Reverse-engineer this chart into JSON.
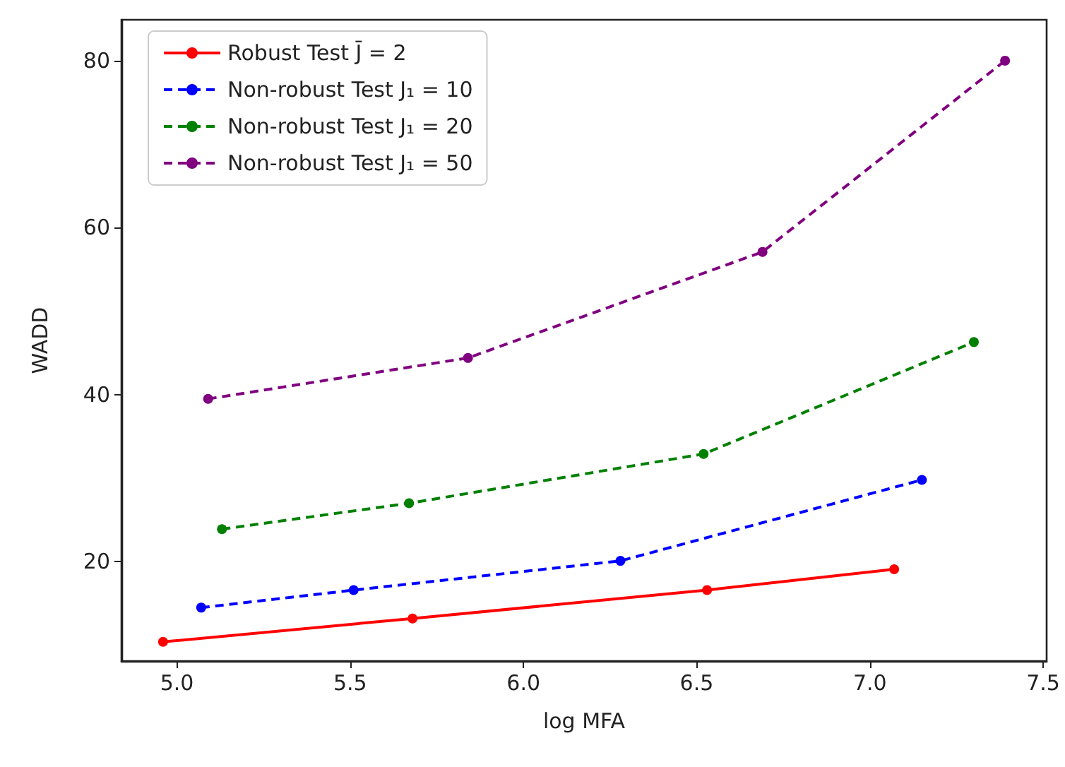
{
  "chart_data": {
    "type": "line",
    "xlabel": "log MFA",
    "ylabel": "WADD",
    "xlim": [
      4.84,
      7.51
    ],
    "xticks": [
      {
        "value": 5,
        "label": "5.0"
      },
      5.5,
      {
        "value": 6,
        "label": "6.0"
      },
      6.5,
      {
        "value": 7,
        "label": "7.0"
      },
      7.5
    ],
    "ylim": [
      8.1,
      84.9
    ],
    "yticks": [
      20,
      40,
      60,
      80
    ],
    "grid": false,
    "legend": "top left",
    "marker": "circle",
    "series": [
      {
        "name": "Robust Test J̄ = 2",
        "color": "#ff0000",
        "line_style": "solid",
        "x": [
          4.96,
          5.68,
          6.53,
          7.07
        ],
        "values": [
          10.4,
          13.2,
          16.6,
          19.1
        ]
      },
      {
        "name": "Non-robust Test J₁ = 10",
        "color": "#0000ff",
        "line_style": "dashed",
        "x": [
          5.07,
          5.51,
          6.28,
          7.15
        ],
        "values": [
          14.5,
          16.6,
          20.1,
          29.8
        ]
      },
      {
        "name": "Non-robust Test J₁ = 20",
        "color": "#008000",
        "line_style": "dashed",
        "x": [
          5.13,
          5.67,
          6.52,
          7.3
        ],
        "values": [
          23.9,
          27.0,
          32.9,
          46.3
        ]
      },
      {
        "name": "Non-robust Test J₁ = 50",
        "color": "#800080",
        "line_style": "dashed",
        "x": [
          5.09,
          5.84,
          6.69,
          7.39
        ],
        "values": [
          39.5,
          44.4,
          57.1,
          80.0
        ]
      }
    ]
  }
}
